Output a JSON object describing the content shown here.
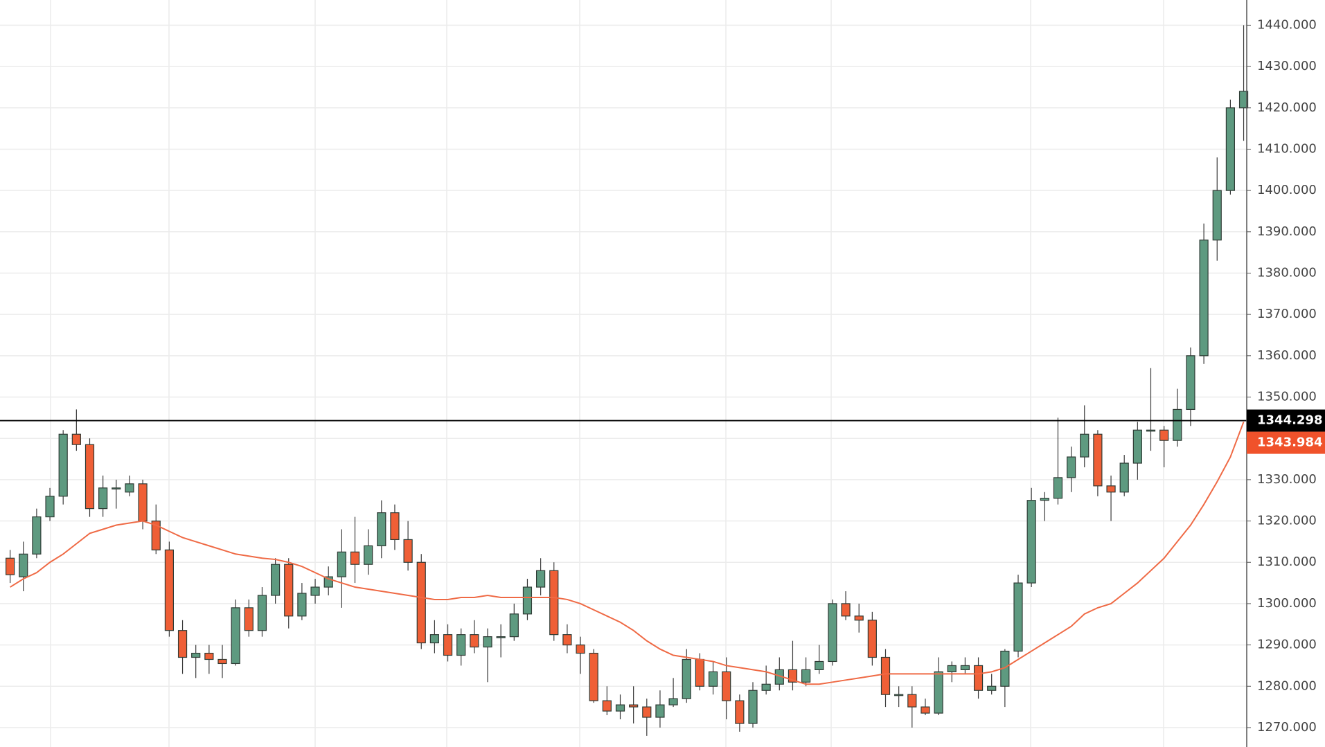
{
  "chart_data": {
    "type": "candlestick",
    "open": [
      1311,
      1306.5,
      1312,
      1321,
      1326,
      1341,
      1338.5,
      1323,
      1328,
      1327,
      1329,
      1320,
      1313,
      1293.5,
      1287,
      1288,
      1286.5,
      1285.5,
      1299,
      1293.5,
      1302,
      1309.5,
      1297,
      1302,
      1304,
      1306.5,
      1312.5,
      1309.5,
      1314,
      1322,
      1315.5,
      1310,
      1290.5,
      1292.5,
      1287.5,
      1292.5,
      1289.5,
      1292,
      1292,
      1297.5,
      1304,
      1308,
      1292.5,
      1290,
      1288,
      1276.5,
      1274,
      1275.5,
      1275,
      1272.5,
      1275.5,
      1277,
      1286.5,
      1280,
      1283.5,
      1276.5,
      1271,
      1279,
      1280.5,
      1284,
      1281,
      1284,
      1286,
      1300,
      1297,
      1296,
      1287,
      1278,
      1278,
      1275,
      1273.5,
      1283.5,
      1284,
      1285,
      1279,
      1280,
      1288.5,
      1305,
      1325,
      1325.5,
      1330.5,
      1335.5,
      1341,
      1328.5,
      1327,
      1334,
      1342,
      1342,
      1339.5,
      1347,
      1360,
      1388,
      1400,
      1420
    ],
    "high": [
      1313,
      1315,
      1323,
      1328,
      1342,
      1347,
      1340,
      1331,
      1330,
      1331,
      1330,
      1324,
      1315,
      1296,
      1290,
      1290,
      1290,
      1301,
      1301,
      1304,
      1311,
      1311,
      1305,
      1306,
      1309,
      1318,
      1321,
      1318,
      1325,
      1324,
      1320,
      1312,
      1296,
      1295,
      1294,
      1296,
      1294,
      1295,
      1300,
      1306,
      1311,
      1310,
      1295,
      1292,
      1289,
      1280,
      1278,
      1280,
      1277,
      1279,
      1282,
      1289,
      1288,
      1286,
      1287,
      1278,
      1281,
      1285,
      1287,
      1291,
      1287,
      1290,
      1301,
      1303,
      1300,
      1298,
      1289,
      1280,
      1280,
      1277,
      1287,
      1286,
      1287,
      1287,
      1283,
      1289,
      1307,
      1328,
      1327,
      1345,
      1338,
      1348,
      1342,
      1331,
      1336,
      1344,
      1357,
      1343,
      1352,
      1362,
      1392,
      1408,
      1422,
      1440
    ],
    "low": [
      1305,
      1303,
      1311,
      1320,
      1324,
      1337,
      1321,
      1321,
      1323,
      1326,
      1318,
      1312,
      1292,
      1283,
      1282,
      1283,
      1282,
      1285,
      1292,
      1292,
      1300,
      1294,
      1296,
      1300,
      1302,
      1299,
      1305,
      1307,
      1311,
      1313,
      1308,
      1289,
      1288,
      1286,
      1285,
      1288,
      1281,
      1287,
      1291,
      1296,
      1302,
      1291,
      1288,
      1283,
      1276,
      1273,
      1272,
      1271,
      1268,
      1270,
      1275,
      1276,
      1279,
      1278,
      1272,
      1269,
      1270,
      1278,
      1279,
      1279,
      1280,
      1283,
      1285,
      1296,
      1293,
      1285,
      1275,
      1275,
      1270,
      1273,
      1273,
      1281,
      1283,
      1277,
      1278,
      1275,
      1287,
      1304,
      1320,
      1324,
      1327,
      1333,
      1326,
      1320,
      1326,
      1330,
      1337,
      1333,
      1338,
      1343,
      1358,
      1383,
      1399,
      1412
    ],
    "close": [
      1307,
      1312,
      1321,
      1326,
      1341,
      1338.5,
      1323,
      1328,
      1328,
      1329,
      1320,
      1313,
      1293.5,
      1287,
      1288,
      1286.5,
      1285.5,
      1299,
      1293.5,
      1302,
      1309.5,
      1297,
      1302.5,
      1304,
      1306.5,
      1312.5,
      1309.5,
      1314,
      1322,
      1315.5,
      1310,
      1290.5,
      1292.5,
      1287.5,
      1292.5,
      1289.5,
      1292,
      1292,
      1297.5,
      1304,
      1308,
      1292.5,
      1290,
      1288,
      1276.5,
      1274,
      1275.5,
      1275,
      1272.5,
      1275.5,
      1277,
      1286.5,
      1280,
      1283.5,
      1276.5,
      1271,
      1279,
      1280.5,
      1284,
      1281,
      1284,
      1286,
      1300,
      1297,
      1296,
      1287,
      1278,
      1278,
      1275,
      1273.5,
      1283.5,
      1285,
      1285,
      1279,
      1280,
      1288.5,
      1305,
      1325,
      1325.5,
      1330.5,
      1335.5,
      1341,
      1328.5,
      1327,
      1334,
      1342,
      1342,
      1339.5,
      1347,
      1360,
      1388,
      1400,
      1420,
      1424
    ],
    "up_color": "#5e9a80",
    "down_color": "#ef5f36",
    "moving_average": {
      "color": "#ef6a45",
      "values": [
        1304,
        1306,
        1307.5,
        1310,
        1312,
        1314.5,
        1317,
        1318,
        1319,
        1319.5,
        1320,
        1319,
        1317.5,
        1316,
        1315,
        1314,
        1313,
        1312,
        1311.5,
        1311,
        1310.7,
        1310,
        1309,
        1307.5,
        1306,
        1305,
        1304,
        1303.5,
        1303,
        1302.5,
        1302,
        1301.5,
        1301,
        1301,
        1301.5,
        1301.5,
        1302,
        1301.5,
        1301.5,
        1301.5,
        1301.5,
        1301.5,
        1301,
        1300,
        1298.5,
        1297,
        1295.5,
        1293.5,
        1291,
        1289,
        1287.5,
        1287,
        1286.5,
        1286,
        1285,
        1284.5,
        1284,
        1283.5,
        1282.5,
        1281.5,
        1280.5,
        1280.5,
        1281,
        1281.5,
        1282,
        1282.5,
        1283,
        1283,
        1283,
        1283,
        1283,
        1283,
        1283,
        1283,
        1283.5,
        1284.5,
        1286.5,
        1288.5,
        1290.5,
        1292.5,
        1294.5,
        1297.5,
        1299,
        1300,
        1302.5,
        1305,
        1308,
        1311,
        1315,
        1319,
        1324,
        1329.5,
        1335.5,
        1344
      ]
    },
    "price_labels": [
      {
        "value": 1344.298,
        "color": "#000000",
        "line": true
      },
      {
        "value": 1343.984,
        "color": "#f0522b",
        "line": false
      }
    ],
    "ylim": [
      1265.3,
      1446.1
    ],
    "yticks": [
      {
        "value": 1270,
        "label": "1270.000"
      },
      {
        "value": 1280,
        "label": "1280.000"
      },
      {
        "value": 1290,
        "label": "1290.000"
      },
      {
        "value": 1300,
        "label": "1300.000"
      },
      {
        "value": 1310,
        "label": "1310.000"
      },
      {
        "value": 1320,
        "label": "1320.000"
      },
      {
        "value": 1330,
        "label": "1330.000"
      },
      {
        "value": 1340,
        "label": "1340.000"
      },
      {
        "value": 1350,
        "label": "1350.000"
      },
      {
        "value": 1360,
        "label": "1360.000"
      },
      {
        "value": 1370,
        "label": "1370.000"
      },
      {
        "value": 1380,
        "label": "1380.000"
      },
      {
        "value": 1390,
        "label": "1390.000"
      },
      {
        "value": 1400,
        "label": "1400.000"
      },
      {
        "value": 1410,
        "label": "1410.000"
      },
      {
        "value": 1420,
        "label": "1420.000"
      },
      {
        "value": 1430,
        "label": "1430.000"
      },
      {
        "value": 1440,
        "label": "1440.000"
      }
    ],
    "grid": true
  }
}
